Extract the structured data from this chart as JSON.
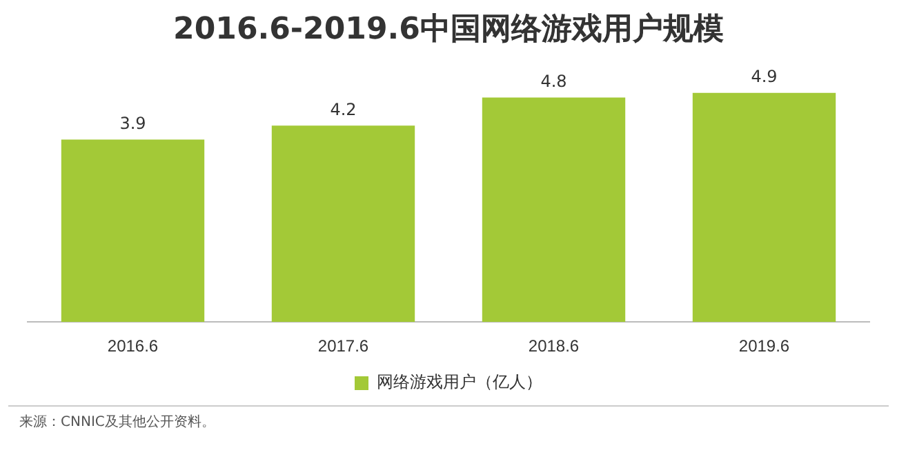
{
  "chart_data": {
    "type": "bar",
    "title": "2016.6-2019.6中国网络游戏用户规模",
    "categories": [
      "2016.6",
      "2017.6",
      "2018.6",
      "2019.6"
    ],
    "series": [
      {
        "name": "网络游戏用户（亿人）",
        "color": "#a3c937",
        "values": [
          3.9,
          4.2,
          4.8,
          4.9
        ]
      }
    ],
    "data_labels": true,
    "grid": false,
    "legend": "bottom",
    "annotations": [
      "来源：CNNIC及其他公开资料。"
    ]
  }
}
